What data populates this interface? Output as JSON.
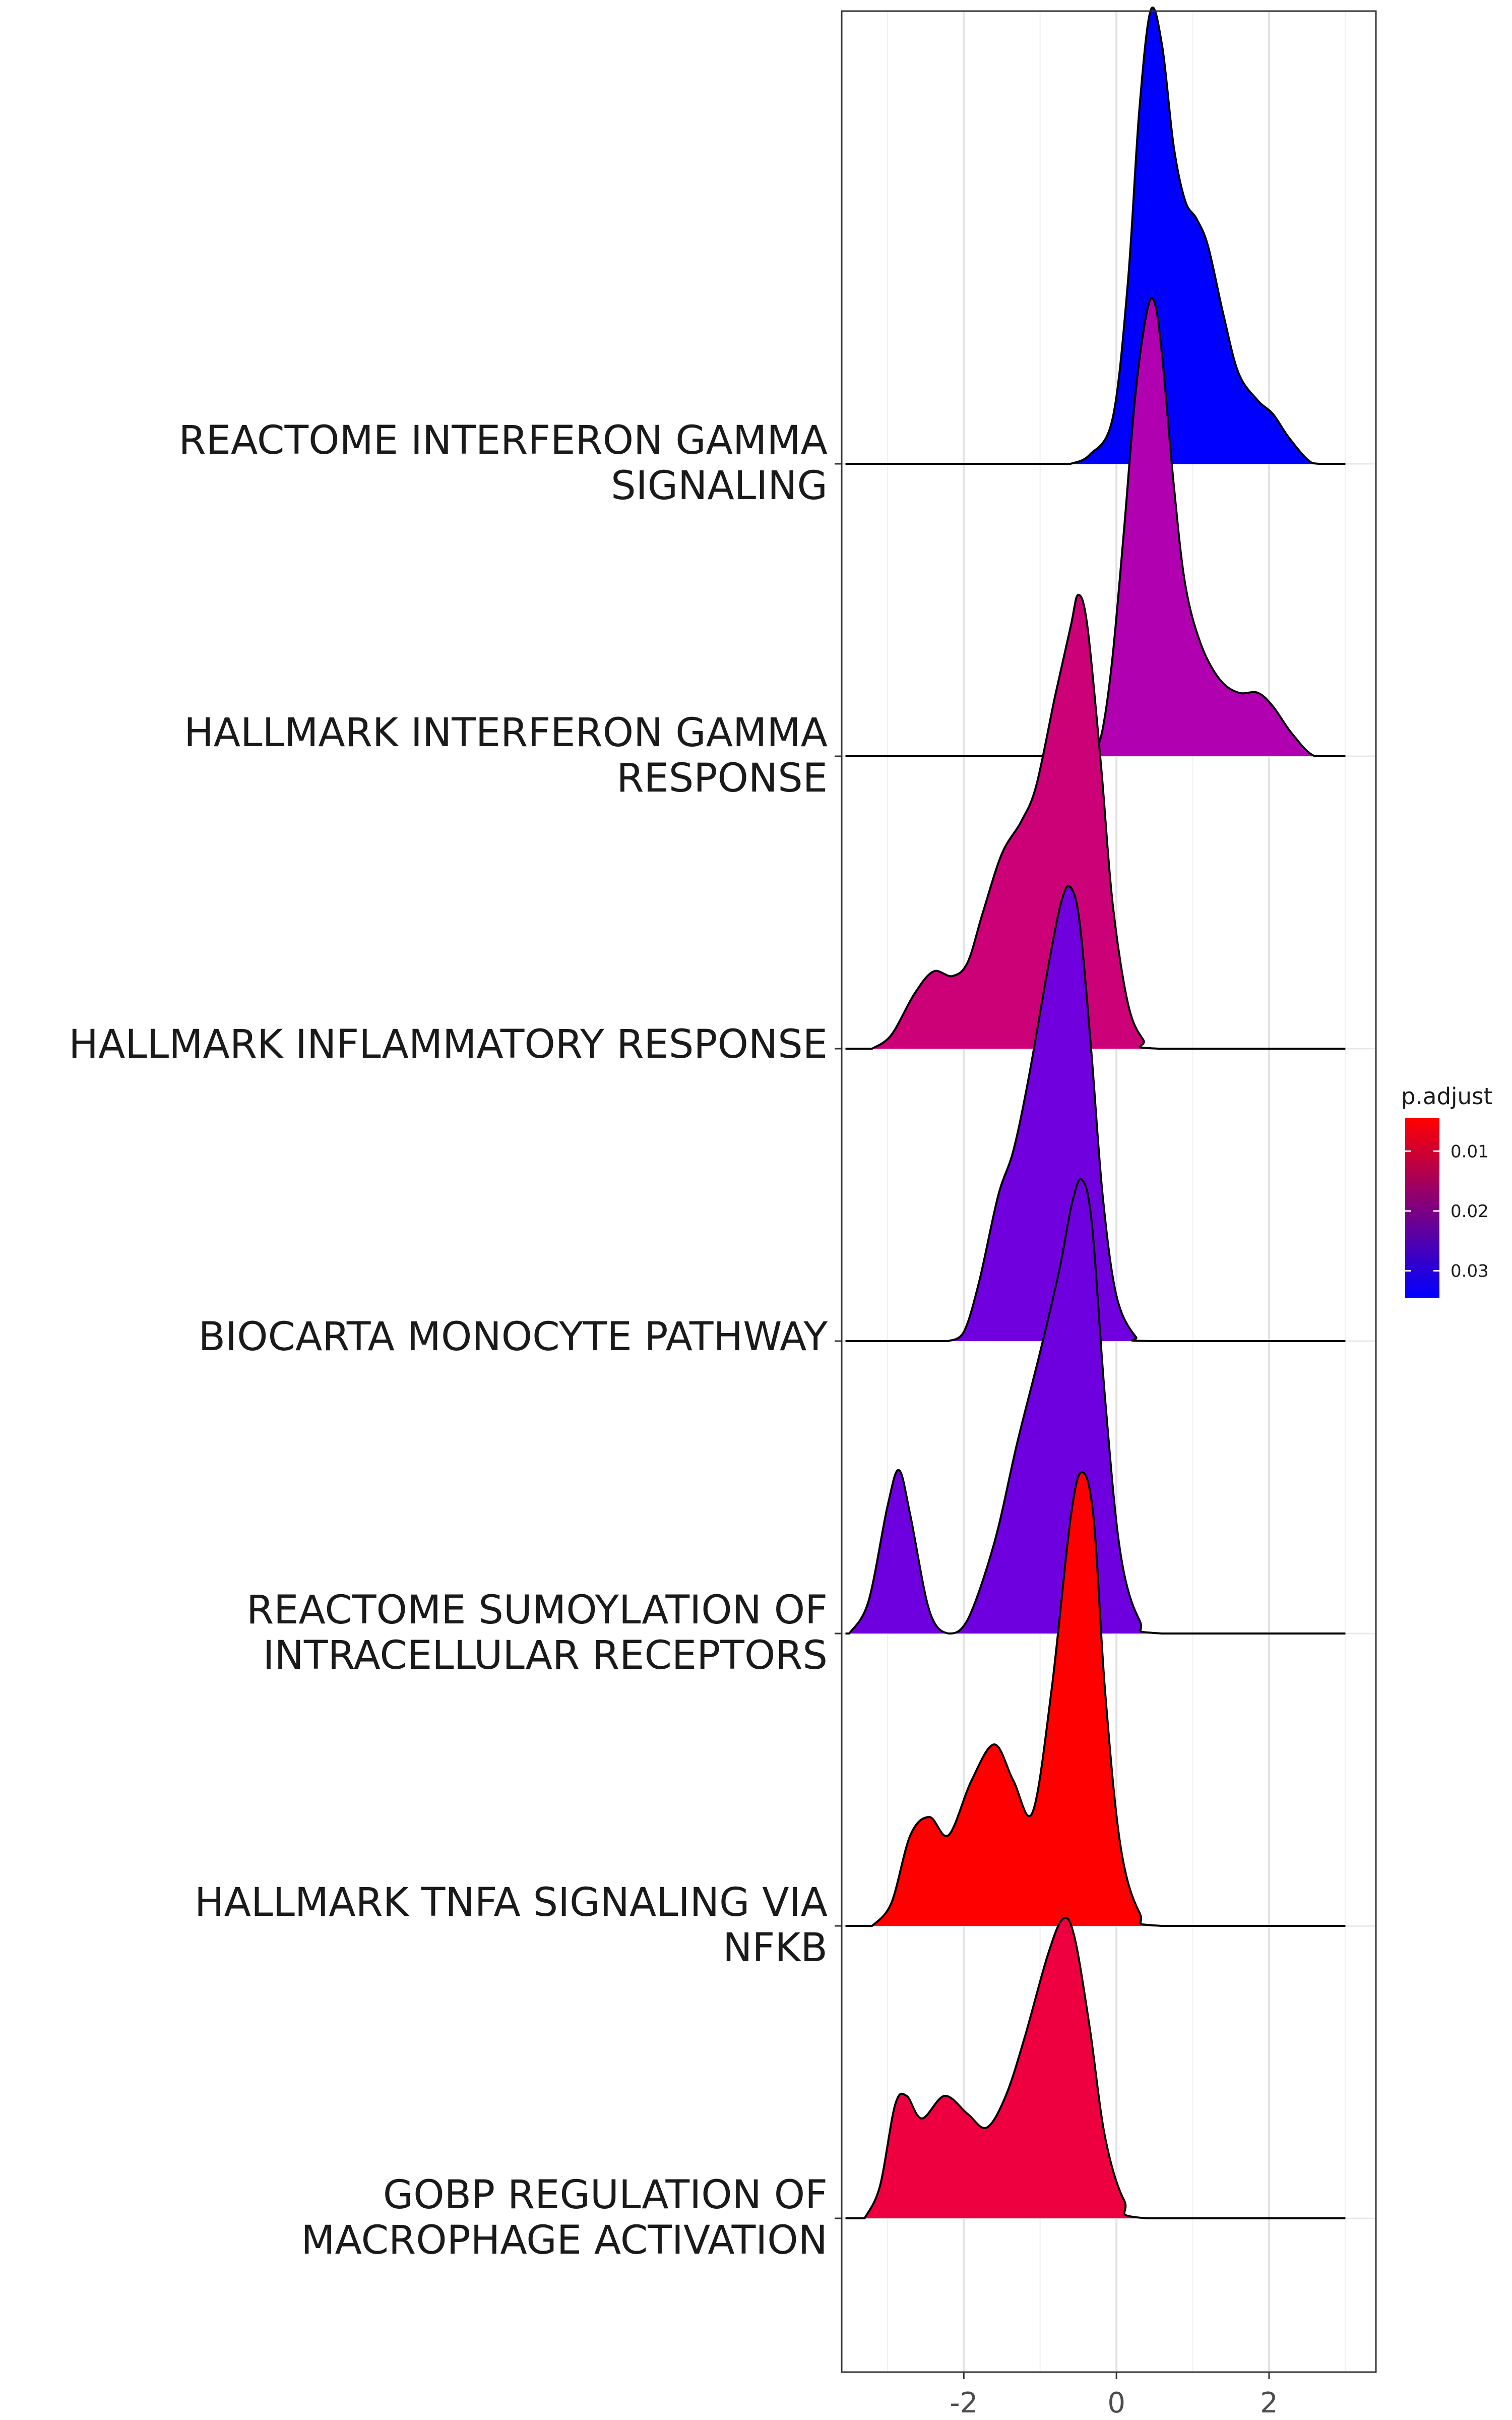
{
  "chart_data": {
    "type": "ridgeline",
    "xlabel": "",
    "ylabel": "",
    "xlim": [
      -3.6,
      3.4
    ],
    "x_ticks": [
      -2,
      0,
      2
    ],
    "x_tick_labels": [
      "-2",
      "0",
      "2"
    ],
    "grid": true,
    "legend": {
      "title": "p.adjust",
      "placement": "right",
      "range": [
        0.0045,
        0.0345
      ],
      "ticks": [
        0.01,
        0.02,
        0.03
      ],
      "tick_labels": [
        "0.01",
        "0.02",
        "0.03"
      ],
      "low_color": "#ff0000",
      "high_color": "#0000ff"
    },
    "series": [
      {
        "name": "REACTOME INTERFERON GAMMA SIGNALING",
        "label_lines": [
          "REACTOME INTERFERON GAMMA",
          "SIGNALING"
        ],
        "p_adjust": 0.0345,
        "color": "#0000ff",
        "density": [
          [
            -0.6,
            0
          ],
          [
            -0.35,
            0.02
          ],
          [
            -0.05,
            0.1
          ],
          [
            0.15,
            0.4
          ],
          [
            0.3,
            0.78
          ],
          [
            0.45,
            1.0
          ],
          [
            0.6,
            0.92
          ],
          [
            0.75,
            0.7
          ],
          [
            0.9,
            0.58
          ],
          [
            1.05,
            0.54
          ],
          [
            1.2,
            0.48
          ],
          [
            1.4,
            0.33
          ],
          [
            1.6,
            0.2
          ],
          [
            1.85,
            0.14
          ],
          [
            2.05,
            0.11
          ],
          [
            2.25,
            0.06
          ],
          [
            2.5,
            0.01
          ],
          [
            2.65,
            0
          ],
          [
            3.0,
            0
          ]
        ]
      },
      {
        "name": "HALLMARK INTERFERON GAMMA RESPONSE",
        "label_lines": [
          "HALLMARK INTERFERON GAMMA",
          "RESPONSE"
        ],
        "p_adjust": 0.0215,
        "color": "#b000b0",
        "density": [
          [
            -0.3,
            0
          ],
          [
            -0.18,
            0.06
          ],
          [
            -0.05,
            0.22
          ],
          [
            0.1,
            0.5
          ],
          [
            0.25,
            0.8
          ],
          [
            0.4,
            0.98
          ],
          [
            0.5,
            1.0
          ],
          [
            0.6,
            0.88
          ],
          [
            0.75,
            0.6
          ],
          [
            0.9,
            0.38
          ],
          [
            1.1,
            0.25
          ],
          [
            1.35,
            0.17
          ],
          [
            1.6,
            0.14
          ],
          [
            1.85,
            0.14
          ],
          [
            2.05,
            0.11
          ],
          [
            2.3,
            0.05
          ],
          [
            2.6,
            0
          ],
          [
            3.0,
            0
          ]
        ]
      },
      {
        "name": "HALLMARK INFLAMMATORY RESPONSE",
        "label_lines": [
          "HALLMARK INFLAMMATORY RESPONSE"
        ],
        "p_adjust": 0.0155,
        "color": "#cc0077",
        "density": [
          [
            -3.2,
            0
          ],
          [
            -2.95,
            0.03
          ],
          [
            -2.65,
            0.12
          ],
          [
            -2.4,
            0.17
          ],
          [
            -2.15,
            0.16
          ],
          [
            -1.95,
            0.19
          ],
          [
            -1.75,
            0.3
          ],
          [
            -1.5,
            0.43
          ],
          [
            -1.25,
            0.5
          ],
          [
            -1.05,
            0.58
          ],
          [
            -0.8,
            0.78
          ],
          [
            -0.6,
            0.93
          ],
          [
            -0.5,
            1.0
          ],
          [
            -0.38,
            0.93
          ],
          [
            -0.2,
            0.62
          ],
          [
            -0.05,
            0.32
          ],
          [
            0.15,
            0.1
          ],
          [
            0.35,
            0.02
          ],
          [
            0.55,
            0
          ],
          [
            3.0,
            0
          ]
        ]
      },
      {
        "name": "BIOCARTA MONOCYTE PATHWAY",
        "label_lines": [
          "BIOCARTA MONOCYTE PATHWAY"
        ],
        "p_adjust": 0.027,
        "color": "#7000dd",
        "density": [
          [
            -2.2,
            0
          ],
          [
            -2.0,
            0.02
          ],
          [
            -1.8,
            0.13
          ],
          [
            -1.55,
            0.32
          ],
          [
            -1.35,
            0.42
          ],
          [
            -1.15,
            0.58
          ],
          [
            -0.9,
            0.82
          ],
          [
            -0.72,
            0.97
          ],
          [
            -0.6,
            1.0
          ],
          [
            -0.48,
            0.92
          ],
          [
            -0.33,
            0.64
          ],
          [
            -0.18,
            0.32
          ],
          [
            0.0,
            0.1
          ],
          [
            0.25,
            0.01
          ],
          [
            0.45,
            0
          ],
          [
            3.0,
            0
          ]
        ]
      },
      {
        "name": "REACTOME SUMOYLATION OF INTRACELLULAR RECEPTORS",
        "label_lines": [
          "REACTOME SUMOYLATION OF",
          "INTRACELLULAR RECEPTORS"
        ],
        "p_adjust": 0.0275,
        "color": "#6e00e0",
        "density": [
          [
            -3.5,
            0
          ],
          [
            -3.25,
            0.07
          ],
          [
            -3.0,
            0.28
          ],
          [
            -2.85,
            0.36
          ],
          [
            -2.7,
            0.26
          ],
          [
            -2.45,
            0.05
          ],
          [
            -2.2,
            0
          ],
          [
            -1.95,
            0.03
          ],
          [
            -1.6,
            0.2
          ],
          [
            -1.3,
            0.42
          ],
          [
            -1.0,
            0.62
          ],
          [
            -0.75,
            0.8
          ],
          [
            -0.58,
            0.95
          ],
          [
            -0.45,
            1.0
          ],
          [
            -0.32,
            0.9
          ],
          [
            -0.15,
            0.52
          ],
          [
            0.05,
            0.18
          ],
          [
            0.3,
            0.03
          ],
          [
            0.6,
            0
          ],
          [
            3.0,
            0
          ]
        ]
      },
      {
        "name": "HALLMARK TNFA SIGNALING VIA NFKB",
        "label_lines": [
          "HALLMARK TNFA SIGNALING VIA",
          "NFKB"
        ],
        "p_adjust": 0.0045,
        "color": "#ff0000",
        "density": [
          [
            -3.2,
            0
          ],
          [
            -2.95,
            0.05
          ],
          [
            -2.7,
            0.2
          ],
          [
            -2.45,
            0.24
          ],
          [
            -2.2,
            0.2
          ],
          [
            -1.9,
            0.32
          ],
          [
            -1.6,
            0.4
          ],
          [
            -1.35,
            0.32
          ],
          [
            -1.1,
            0.25
          ],
          [
            -0.85,
            0.52
          ],
          [
            -0.6,
            0.9
          ],
          [
            -0.45,
            1.0
          ],
          [
            -0.3,
            0.9
          ],
          [
            -0.15,
            0.52
          ],
          [
            0.05,
            0.18
          ],
          [
            0.3,
            0.03
          ],
          [
            0.6,
            0
          ],
          [
            3.0,
            0
          ]
        ]
      },
      {
        "name": "GOBP REGULATION OF MACROPHAGE ACTIVATION",
        "label_lines": [
          "GOBP REGULATION OF",
          "MACROPHAGE ACTIVATION"
        ],
        "p_adjust": 0.0075,
        "color": "#ee0040",
        "density": [
          [
            -3.3,
            0
          ],
          [
            -3.1,
            0.07
          ],
          [
            -2.9,
            0.25
          ],
          [
            -2.75,
            0.27
          ],
          [
            -2.55,
            0.22
          ],
          [
            -2.25,
            0.27
          ],
          [
            -1.95,
            0.23
          ],
          [
            -1.7,
            0.2
          ],
          [
            -1.45,
            0.27
          ],
          [
            -1.2,
            0.4
          ],
          [
            -0.9,
            0.58
          ],
          [
            -0.7,
            0.66
          ],
          [
            -0.55,
            0.62
          ],
          [
            -0.35,
            0.42
          ],
          [
            -0.15,
            0.18
          ],
          [
            0.1,
            0.04
          ],
          [
            0.4,
            0
          ],
          [
            3.0,
            0
          ]
        ]
      }
    ]
  }
}
